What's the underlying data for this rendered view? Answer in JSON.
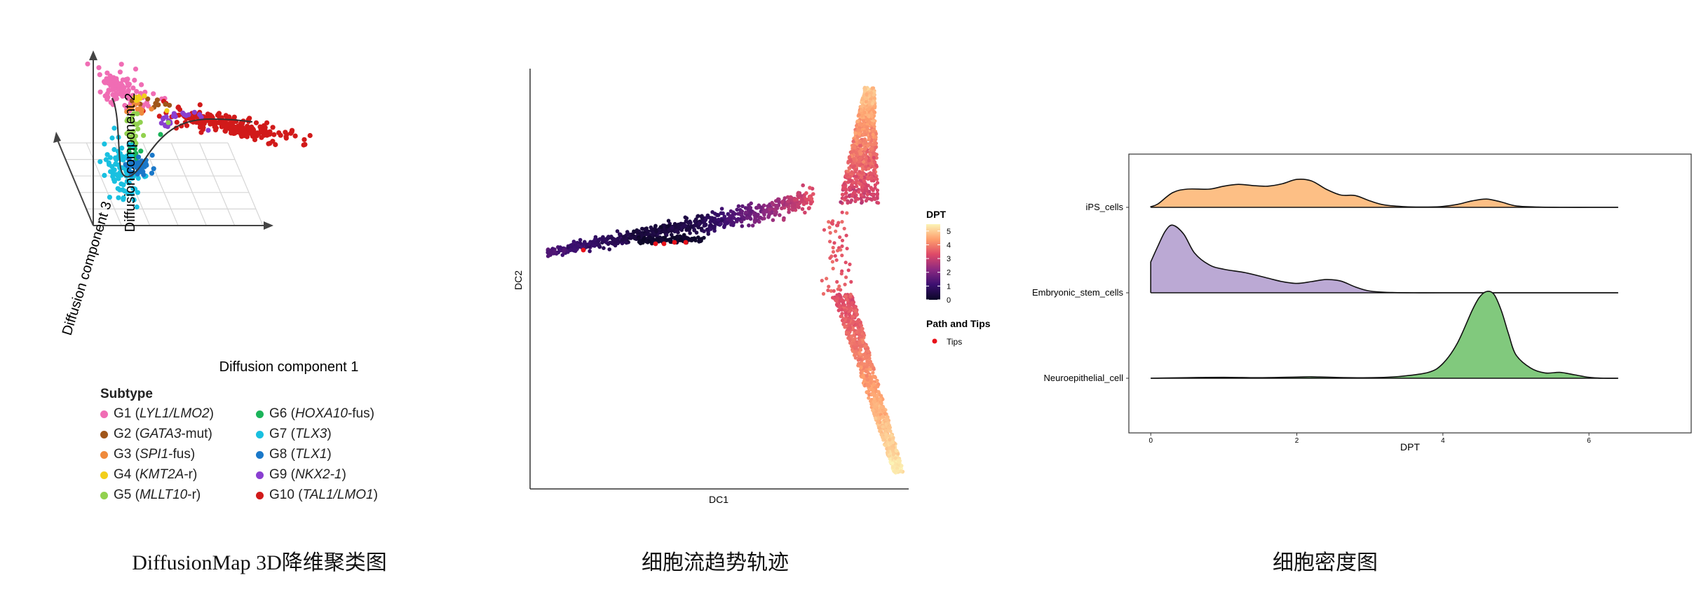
{
  "captions": {
    "a": "DiffusionMap 3D降维聚类图",
    "b": "细胞流趋势轨迹",
    "c": "细胞密度图"
  },
  "chart_data": [
    {
      "type": "scatter",
      "panel": "3d-diffusion-map",
      "xlabel": "Diffusion component 1",
      "ylabel": "Diffusion component 2",
      "zlabel": "Diffusion component 3",
      "legend_title": "Subtype",
      "legend": [
        {
          "label_pre": "G1 (",
          "label_it": "LYL1/LMO2",
          "label_post": ")",
          "color": "#f06db4"
        },
        {
          "label_pre": "G2 (",
          "label_it": "GATA3",
          "label_post": "-mut)",
          "color": "#a0561a"
        },
        {
          "label_pre": "G3 (",
          "label_it": "SPI1",
          "label_post": "-fus)",
          "color": "#ef8a3c"
        },
        {
          "label_pre": "G4 (",
          "label_it": "KMT2A",
          "label_post": "-r)",
          "color": "#f2cf1b"
        },
        {
          "label_pre": "G5 (",
          "label_it": "MLLT10",
          "label_post": "-r)",
          "color": "#92d14f"
        },
        {
          "label_pre": "G6 (",
          "label_it": "HOXA10",
          "label_post": "-fus)",
          "color": "#1bb45a"
        },
        {
          "label_pre": "G7 (",
          "label_it": "TLX3",
          "label_post": ")",
          "color": "#19c0e0"
        },
        {
          "label_pre": "G8 (",
          "label_it": "TLX1",
          "label_post": ")",
          "color": "#1a78c9"
        },
        {
          "label_pre": "G9 (",
          "label_it": "NKX2-1",
          "label_post": ")",
          "color": "#8a3fd1"
        },
        {
          "label_pre": "G10 (",
          "label_it": "TAL1/LMO1",
          "label_post": ")",
          "color": "#d11a1a"
        }
      ],
      "legend_placement": "bottom",
      "grid": true
    },
    {
      "type": "scatter",
      "panel": "trajectory",
      "xlabel": "DC1",
      "ylabel": "DC2",
      "colorbar_title": "DPT",
      "colorbar_ticks": [
        "5",
        "4",
        "3",
        "2",
        "1",
        "0"
      ],
      "colorbar_range": [
        0,
        5.5
      ],
      "legend_title": "Path and Tips",
      "legend_item": "Tips",
      "tips_color": "#e8121a",
      "legend_placement": "right"
    },
    {
      "type": "area",
      "panel": "ridgeline-density",
      "xlabel": "DPT",
      "xlim": [
        -0.3,
        7.4
      ],
      "xticks": [
        "0",
        "2",
        "4",
        "6"
      ],
      "series": [
        {
          "name": "iPS_cells",
          "color": "#fdbf85",
          "x": [
            0,
            0.1,
            0.3,
            0.5,
            0.8,
            1.0,
            1.2,
            1.4,
            1.6,
            1.8,
            2.0,
            2.2,
            2.4,
            2.6,
            2.8,
            3.0,
            3.2,
            3.5,
            3.8,
            4.0,
            4.2,
            4.4,
            4.6,
            4.8,
            5.0,
            5.3,
            5.6,
            6.0,
            6.4
          ],
          "y": [
            0.02,
            0.12,
            0.5,
            0.62,
            0.62,
            0.72,
            0.78,
            0.74,
            0.72,
            0.8,
            0.95,
            0.9,
            0.62,
            0.42,
            0.4,
            0.22,
            0.08,
            0.02,
            0.01,
            0.03,
            0.1,
            0.22,
            0.28,
            0.18,
            0.05,
            0.01,
            0.0,
            0.0,
            0.0
          ]
        },
        {
          "name": "Embryonic_stem_cells",
          "color": "#bba9d4",
          "x": [
            0,
            0.1,
            0.2,
            0.3,
            0.45,
            0.6,
            0.8,
            1.0,
            1.3,
            1.6,
            1.8,
            2.0,
            2.2,
            2.4,
            2.6,
            2.8,
            3.0,
            3.3,
            3.6,
            4.0,
            5.0,
            6.4
          ],
          "y": [
            1.05,
            1.6,
            2.1,
            2.3,
            2.0,
            1.35,
            0.95,
            0.8,
            0.68,
            0.5,
            0.38,
            0.32,
            0.38,
            0.45,
            0.4,
            0.2,
            0.06,
            0.01,
            0.0,
            0.0,
            0.0,
            0.0
          ]
        },
        {
          "name": "Neuroepithelial_cell",
          "color": "#81c97d",
          "x": [
            0,
            0.5,
            1.0,
            1.5,
            2.0,
            2.2,
            2.5,
            3.0,
            3.4,
            3.8,
            4.0,
            4.2,
            4.4,
            4.5,
            4.6,
            4.7,
            4.8,
            4.9,
            5.0,
            5.2,
            5.4,
            5.6,
            5.8,
            6.0,
            6.2,
            6.4
          ],
          "y": [
            0.0,
            0.02,
            0.03,
            0.02,
            0.04,
            0.05,
            0.03,
            0.02,
            0.06,
            0.2,
            0.5,
            1.2,
            2.3,
            2.75,
            2.95,
            2.85,
            2.3,
            1.5,
            0.8,
            0.35,
            0.18,
            0.2,
            0.12,
            0.03,
            0.0,
            0.0
          ]
        }
      ]
    }
  ]
}
